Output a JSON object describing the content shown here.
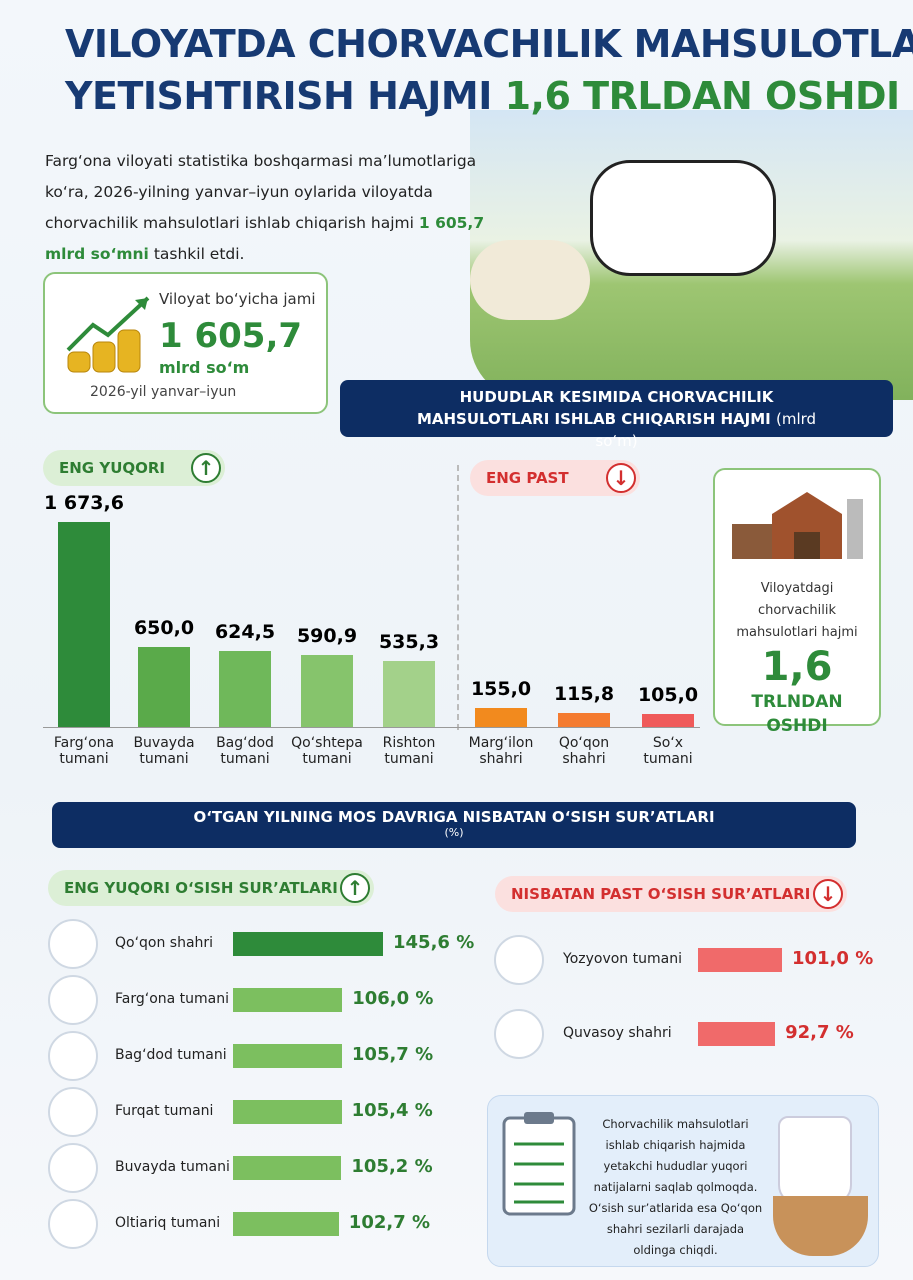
{
  "header": {
    "title_line1": "VILOYATDA CHORVACHILIK MAHSULOTLARI",
    "title_line2": "YETISHTIRISH HAJMI",
    "title_highlight": "1,6 TRLDAN OSHDI",
    "intro": "Farg‘ona viloyati statistika boshqarmasi ma’lumotlariga ko‘ra, 2026-yilning yanvar–iyun oylarida viloyatda chorvachilik mahsulotlari ishlab chiqarish hajmi",
    "intro_highlight": "1 605,7 mlrd so‘mni",
    "intro_end": "tashkil etdi."
  },
  "total_card": {
    "label": "Viloyat bo‘yicha jami",
    "value": "1 605,7",
    "unit": "mlrd so‘m",
    "period": "2026-yil yanvar–iyun"
  },
  "production_section": {
    "title": "HUDUDLAR KESIMIDA CHORVACHILIK MAHSULOTLARI ISHLAB CHIQARISH HAJMI",
    "unit": "(mlrd so‘m)"
  },
  "side_card": {
    "text": "Viloyatdagi chorvachilik mahsulotlari hajmi",
    "value": "1,6",
    "highlight": "TRLNDAN OSHDI"
  },
  "growth_section": {
    "title": "O‘TGAN YILNING MOS DAVRIGA NISBATAN O‘SISH SUR’ATLARI",
    "unit": "(%)"
  },
  "note": "Chorvachilik mahsulotlari ishlab chiqarish hajmida yetakchi hududlar yuqori natijalarni saqlab qolmoqda. O‘sish sur’atlarida esa Qo‘qon shahri sezilarli darajada oldinga chiqdi.",
  "chart_data": [
    {
      "type": "bar",
      "title": "ENG YUQORI",
      "categories": [
        "Farg‘ona tumani",
        "Buvayda tumani",
        "Bag‘dod tumani",
        "Qo‘shtepa tumani",
        "Rishton tumani"
      ],
      "values": [
        1673.6,
        650.0,
        624.5,
        590.9,
        535.3
      ],
      "value_labels": [
        "1 673,6",
        "650,0",
        "624,5",
        "590,9",
        "535,3"
      ],
      "colors": [
        "#2e8b3a",
        "#5aaa4a",
        "#6fb85a",
        "#86c46c",
        "#a3d18a"
      ]
    },
    {
      "type": "bar",
      "title": "ENG PAST",
      "categories": [
        "Marg‘ilon shahri",
        "Qo‘qon shahri",
        "So‘x tumani"
      ],
      "values": [
        155.0,
        115.8,
        105.0
      ],
      "value_labels": [
        "155,0",
        "115,8",
        "105,0"
      ],
      "colors": [
        "#f28a1e",
        "#f47b30",
        "#ef5a5a"
      ]
    },
    {
      "type": "barh",
      "title": "ENG YUQORI O‘SISH SUR’ATLARI",
      "categories": [
        "Qo‘qon shahri",
        "Farg‘ona tumani",
        "Bag‘dod tumani",
        "Furqat tumani",
        "Buvayda tumani",
        "Oltiariq tumani"
      ],
      "values": [
        145.6,
        106.0,
        105.7,
        105.4,
        105.2,
        102.7
      ],
      "value_labels": [
        "145,6 %",
        "106,0 %",
        "105,7 %",
        "105,4 %",
        "105,2 %",
        "102,7 %"
      ],
      "colors": [
        "#2e8b3a",
        "#7cbf5f",
        "#7cbf5f",
        "#7cbf5f",
        "#7cbf5f",
        "#7cbf5f"
      ]
    },
    {
      "type": "barh",
      "title": "NISBATAN PAST O‘SISH SUR’ATLARI",
      "categories": [
        "Yozyovon tumani",
        "Quvasoy shahri"
      ],
      "values": [
        101.0,
        92.7
      ],
      "value_labels": [
        "101,0 %",
        "92,7 %"
      ],
      "colors": [
        "#f06a6a",
        "#f06a6a"
      ]
    }
  ]
}
